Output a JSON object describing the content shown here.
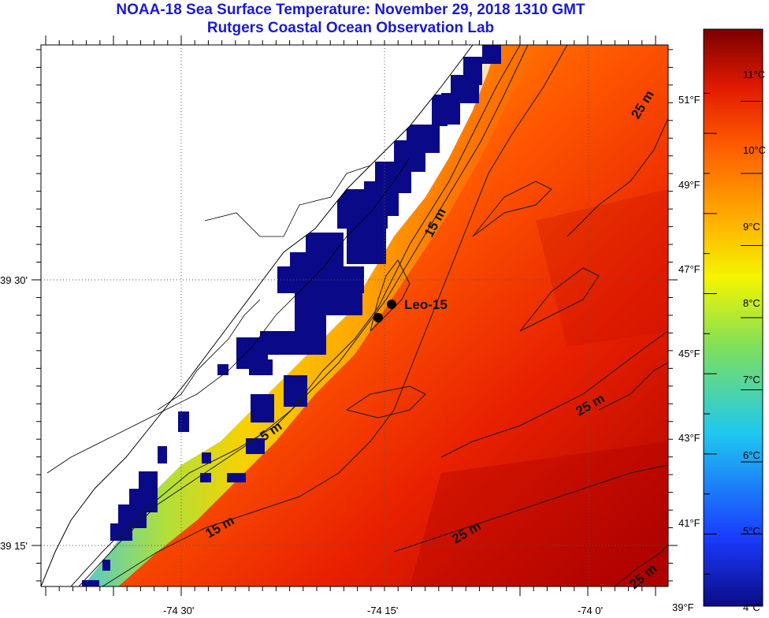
{
  "title": "NOAA-18 Sea Surface Temperature:  November 29, 2018 1310 GMT",
  "subtitle": "Rutgers Coastal Ocean Observation Lab",
  "lon_ticks": [
    "-74 30'",
    "-74 15'",
    "-74 0'"
  ],
  "lat_ticks": [
    "39 30'",
    "39 15'"
  ],
  "station": {
    "name": "Leo-15"
  },
  "depth_contours": [
    "15 m",
    "5 m",
    "15 m",
    "25 m",
    "25 m",
    "25 m",
    "25 m"
  ],
  "colorbar": {
    "celsius": [
      "11°C",
      "10°C",
      "9°C",
      "8°C",
      "7°C",
      "6°C",
      "5°C",
      "4°C"
    ],
    "fahrenheit": [
      "51°F",
      "49°F",
      "47°F",
      "45°F",
      "43°F",
      "41°F",
      "39°F"
    ],
    "range_c": [
      4,
      12
    ],
    "colors": [
      "#0b0b85",
      "#1a3cff",
      "#1fc8f0",
      "#7fe05a",
      "#f5f500",
      "#ffa800",
      "#ff5a00",
      "#e01a00",
      "#7a0000"
    ]
  }
}
